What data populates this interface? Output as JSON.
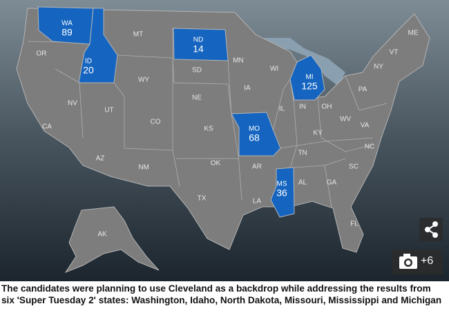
{
  "map": {
    "states": [
      {
        "abbr": "WA",
        "count": 89
      },
      {
        "abbr": "ID",
        "count": 20
      },
      {
        "abbr": "ND",
        "count": 14
      },
      {
        "abbr": "MI",
        "count": 125
      },
      {
        "abbr": "MO",
        "count": 68
      },
      {
        "abbr": "MS",
        "count": 36
      },
      {
        "abbr": "MT"
      },
      {
        "abbr": "MN"
      },
      {
        "abbr": "WI"
      },
      {
        "abbr": "OR"
      },
      {
        "abbr": "SD"
      },
      {
        "abbr": "WY"
      },
      {
        "abbr": "NV"
      },
      {
        "abbr": "UT"
      },
      {
        "abbr": "CO"
      },
      {
        "abbr": "NE"
      },
      {
        "abbr": "IA"
      },
      {
        "abbr": "IL"
      },
      {
        "abbr": "IN"
      },
      {
        "abbr": "OH"
      },
      {
        "abbr": "PA"
      },
      {
        "abbr": "NY"
      },
      {
        "abbr": "VT"
      },
      {
        "abbr": "ME"
      },
      {
        "abbr": "KS"
      },
      {
        "abbr": "KY"
      },
      {
        "abbr": "WV"
      },
      {
        "abbr": "VA"
      },
      {
        "abbr": "NC"
      },
      {
        "abbr": "TN"
      },
      {
        "abbr": "SC"
      },
      {
        "abbr": "GA"
      },
      {
        "abbr": "AL"
      },
      {
        "abbr": "AR"
      },
      {
        "abbr": "LA"
      },
      {
        "abbr": "OK"
      },
      {
        "abbr": "TX"
      },
      {
        "abbr": "NM"
      },
      {
        "abbr": "AZ"
      },
      {
        "abbr": "CA"
      },
      {
        "abbr": "FL"
      },
      {
        "abbr": "AK"
      }
    ]
  },
  "gallery": {
    "extra": "+6"
  },
  "caption": "The candidates were planning to use Cleveland as a backdrop while addressing the results from six 'Super Tuesday 2' states: Washington, Idaho, North Dakota, Missouri, Mississippi and Michigan"
}
